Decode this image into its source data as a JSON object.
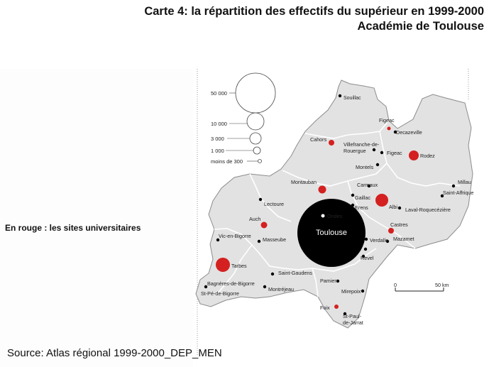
{
  "title_line1": "Carte 4: la répartition des effectifs du supérieur en 1999-2000",
  "title_line2": "Académie de Toulouse",
  "note": "En rouge : les sites universitaires",
  "source": "Source: Atlas régional 1999-2000_DEP_MEN",
  "legend": [
    {
      "label": "50 000",
      "value": 50000
    },
    {
      "label": "10 000",
      "value": 10000
    },
    {
      "label": "3 000",
      "value": 3000
    },
    {
      "label": "1 000",
      "value": 1000
    },
    {
      "label": "moins de 300",
      "value": 300
    }
  ],
  "scale": {
    "start": "0",
    "end": "50 km"
  },
  "colors": {
    "university": "#d42020",
    "other": "#000000",
    "region_fill": "#e2e2e2",
    "border": "#ffffff"
  },
  "places": [
    {
      "name": "Souillac",
      "type": "other"
    },
    {
      "name": "Figeac",
      "type": "university"
    },
    {
      "name": "Decazeville",
      "type": "other"
    },
    {
      "name": "Cahors",
      "type": "university"
    },
    {
      "name": "Villefranche-de-Rouergue",
      "type": "other"
    },
    {
      "name": "Rodez",
      "type": "university"
    },
    {
      "name": "Figeac",
      "type": "other"
    },
    {
      "name": "Montauban",
      "type": "university"
    },
    {
      "name": "Millau",
      "type": "other"
    },
    {
      "name": "Carmaux",
      "type": "other"
    },
    {
      "name": "Saint-Affrique",
      "type": "other"
    },
    {
      "name": "Gaillac",
      "type": "other"
    },
    {
      "name": "Albi",
      "type": "university"
    },
    {
      "name": "Lectoure",
      "type": "other"
    },
    {
      "name": "Laval-Roquecézière",
      "type": "other"
    },
    {
      "name": "Auch",
      "type": "university"
    },
    {
      "name": "Castres",
      "type": "university"
    },
    {
      "name": "Toulouse",
      "type": "university"
    },
    {
      "name": "Vic-en-Bigorre",
      "type": "other"
    },
    {
      "name": "Masseube",
      "type": "other"
    },
    {
      "name": "Mazamet",
      "type": "other"
    },
    {
      "name": "Tarbes",
      "type": "university"
    },
    {
      "name": "Saint-Gaudens",
      "type": "other"
    },
    {
      "name": "Bagnères-de-Bigorre",
      "type": "other"
    },
    {
      "name": "Montréjeau",
      "type": "other"
    },
    {
      "name": "Pamiers",
      "type": "other"
    },
    {
      "name": "Mirepoix",
      "type": "other"
    },
    {
      "name": "Foix",
      "type": "university"
    },
    {
      "name": "Saint-Paul-de-Jarrat",
      "type": "other"
    }
  ]
}
